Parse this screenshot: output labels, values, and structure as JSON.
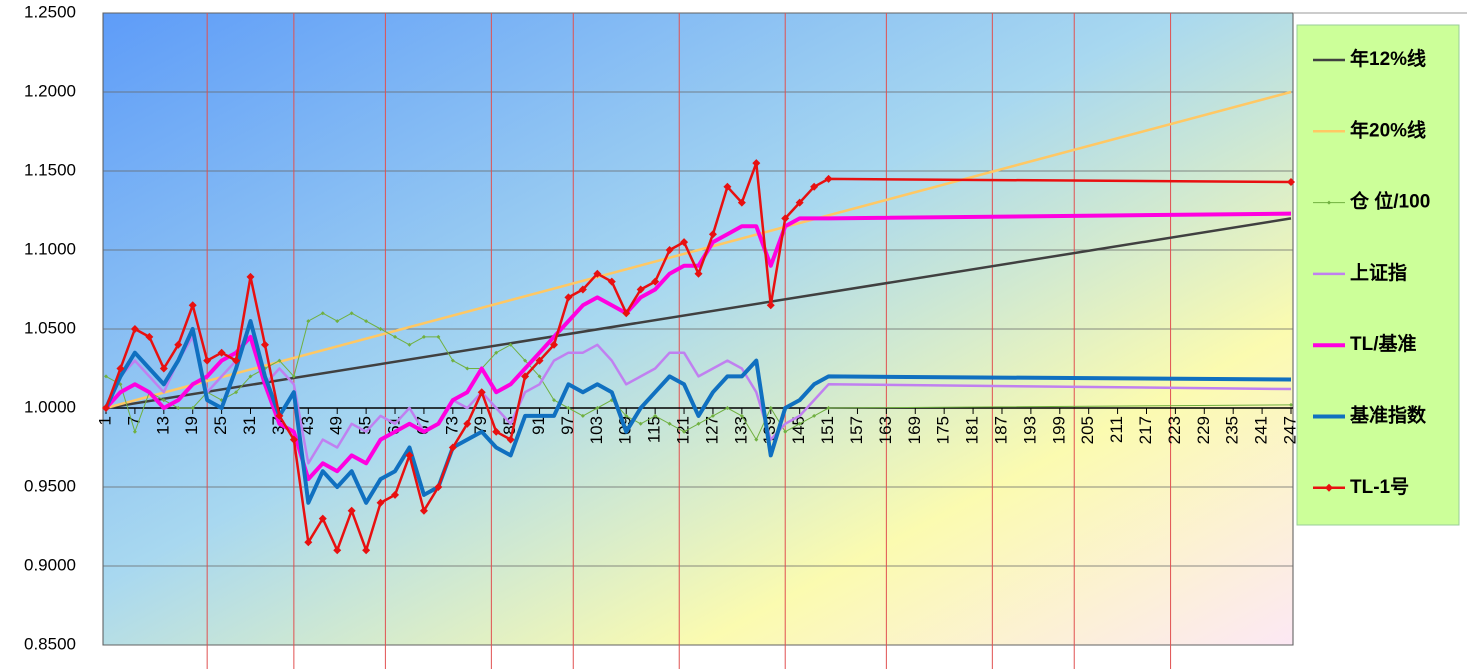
{
  "chart_data": {
    "type": "line",
    "x": [
      1,
      4,
      7,
      10,
      13,
      16,
      19,
      22,
      25,
      28,
      31,
      34,
      37,
      40,
      43,
      46,
      49,
      52,
      55,
      58,
      61,
      64,
      67,
      70,
      73,
      76,
      79,
      82,
      85,
      88,
      91,
      94,
      97,
      100,
      103,
      106,
      109,
      112,
      115,
      118,
      121,
      124,
      127,
      130,
      133,
      136,
      139,
      142,
      145,
      148,
      151,
      247
    ],
    "xlim": [
      1,
      247
    ],
    "xticks": [
      1,
      7,
      13,
      19,
      25,
      31,
      37,
      43,
      49,
      55,
      61,
      67,
      73,
      79,
      85,
      91,
      97,
      103,
      109,
      115,
      121,
      127,
      133,
      139,
      145,
      151,
      157,
      163,
      169,
      175,
      181,
      187,
      193,
      199,
      205,
      211,
      217,
      223,
      229,
      235,
      241,
      247
    ],
    "ylim": [
      0.85,
      1.25
    ],
    "yticks": [
      {
        "value": 0.85,
        "label": "0.8500"
      },
      {
        "value": 0.9,
        "label": "0.9000"
      },
      {
        "value": 0.95,
        "label": "0.9500"
      },
      {
        "value": 1.0,
        "label": "1.0000"
      },
      {
        "value": 1.05,
        "label": "1.0500"
      },
      {
        "value": 1.1,
        "label": "1.1000"
      },
      {
        "value": 1.15,
        "label": "1.1500"
      },
      {
        "value": 1.2,
        "label": "1.2000"
      },
      {
        "value": 1.25,
        "label": "1.2500"
      }
    ],
    "grid": true,
    "vlines": [
      22,
      40,
      59,
      81,
      98,
      120,
      142,
      163,
      185,
      202,
      222
    ],
    "legend": "right",
    "series": [
      {
        "name": "年12%线",
        "color": "#404040",
        "width": 2.5,
        "x": [
          1,
          247
        ],
        "values": [
          1.0,
          1.12
        ]
      },
      {
        "name": "年20%线",
        "color": "#ffc864",
        "width": 2.5,
        "x": [
          1,
          247
        ],
        "values": [
          1.0,
          1.2
        ]
      },
      {
        "name": "仓 位/100",
        "color": "#70b040",
        "width": 1,
        "marker": "dot",
        "values": [
          1.02,
          1.015,
          0.985,
          1.01,
          1.005,
          1.0,
          1.0,
          1.01,
          1.005,
          1.01,
          1.02,
          1.025,
          1.03,
          1.02,
          1.055,
          1.06,
          1.055,
          1.06,
          1.055,
          1.05,
          1.045,
          1.04,
          1.045,
          1.045,
          1.03,
          1.025,
          1.025,
          1.035,
          1.04,
          1.03,
          1.02,
          1.005,
          1.0,
          0.995,
          1.0,
          1.005,
          0.995,
          0.99,
          0.995,
          0.99,
          0.985,
          0.99,
          0.995,
          1.0,
          0.995,
          0.98,
          1.0,
          0.985,
          0.99,
          0.995,
          1.0,
          1.002
        ]
      },
      {
        "name": "上证指",
        "color": "#c080f0",
        "width": 2.5,
        "values": [
          1.0,
          1.02,
          1.03,
          1.02,
          1.01,
          1.03,
          1.045,
          1.01,
          1.02,
          1.03,
          1.055,
          1.015,
          1.025,
          1.015,
          0.965,
          0.98,
          0.975,
          0.99,
          0.985,
          0.995,
          0.99,
          1.0,
          0.985,
          0.99,
          1.005,
          1.0,
          1.01,
          1.0,
          0.99,
          1.01,
          1.015,
          1.03,
          1.035,
          1.035,
          1.04,
          1.03,
          1.015,
          1.02,
          1.025,
          1.035,
          1.035,
          1.02,
          1.025,
          1.03,
          1.025,
          1.01,
          0.98,
          0.99,
          0.995,
          1.005,
          1.015,
          1.012
        ]
      },
      {
        "name": "TL/基准",
        "color": "#ff00e0",
        "width": 4,
        "values": [
          1.0,
          1.01,
          1.015,
          1.01,
          1.0,
          1.005,
          1.015,
          1.02,
          1.03,
          1.035,
          1.045,
          1.015,
          0.99,
          0.985,
          0.955,
          0.965,
          0.96,
          0.97,
          0.965,
          0.98,
          0.985,
          0.99,
          0.985,
          0.99,
          1.005,
          1.01,
          1.025,
          1.01,
          1.015,
          1.025,
          1.035,
          1.045,
          1.055,
          1.065,
          1.07,
          1.065,
          1.06,
          1.07,
          1.075,
          1.085,
          1.09,
          1.09,
          1.105,
          1.11,
          1.115,
          1.115,
          1.09,
          1.115,
          1.12,
          1.12,
          1.12,
          1.123
        ]
      },
      {
        "name": "基准指数",
        "color": "#1070c0",
        "width": 4,
        "values": [
          1.0,
          1.02,
          1.035,
          1.025,
          1.015,
          1.03,
          1.05,
          1.005,
          1.0,
          1.025,
          1.055,
          1.02,
          0.995,
          1.01,
          0.94,
          0.96,
          0.95,
          0.96,
          0.94,
          0.955,
          0.96,
          0.975,
          0.945,
          0.95,
          0.975,
          0.98,
          0.985,
          0.975,
          0.97,
          0.995,
          0.995,
          0.995,
          1.015,
          1.01,
          1.015,
          1.01,
          0.985,
          1.0,
          1.01,
          1.02,
          1.015,
          0.995,
          1.01,
          1.02,
          1.02,
          1.03,
          0.97,
          1.0,
          1.005,
          1.015,
          1.02,
          1.018
        ]
      },
      {
        "name": "TL-1号",
        "color": "#e81010",
        "width": 2.5,
        "marker": "diamond",
        "values": [
          1.0,
          1.025,
          1.05,
          1.045,
          1.025,
          1.04,
          1.065,
          1.03,
          1.035,
          1.03,
          1.083,
          1.04,
          0.995,
          0.98,
          0.915,
          0.93,
          0.91,
          0.935,
          0.91,
          0.94,
          0.945,
          0.97,
          0.935,
          0.95,
          0.975,
          0.99,
          1.01,
          0.985,
          0.98,
          1.02,
          1.03,
          1.04,
          1.07,
          1.075,
          1.085,
          1.08,
          1.06,
          1.075,
          1.08,
          1.1,
          1.105,
          1.085,
          1.11,
          1.14,
          1.13,
          1.155,
          1.065,
          1.12,
          1.13,
          1.14,
          1.145,
          1.143
        ]
      }
    ]
  }
}
